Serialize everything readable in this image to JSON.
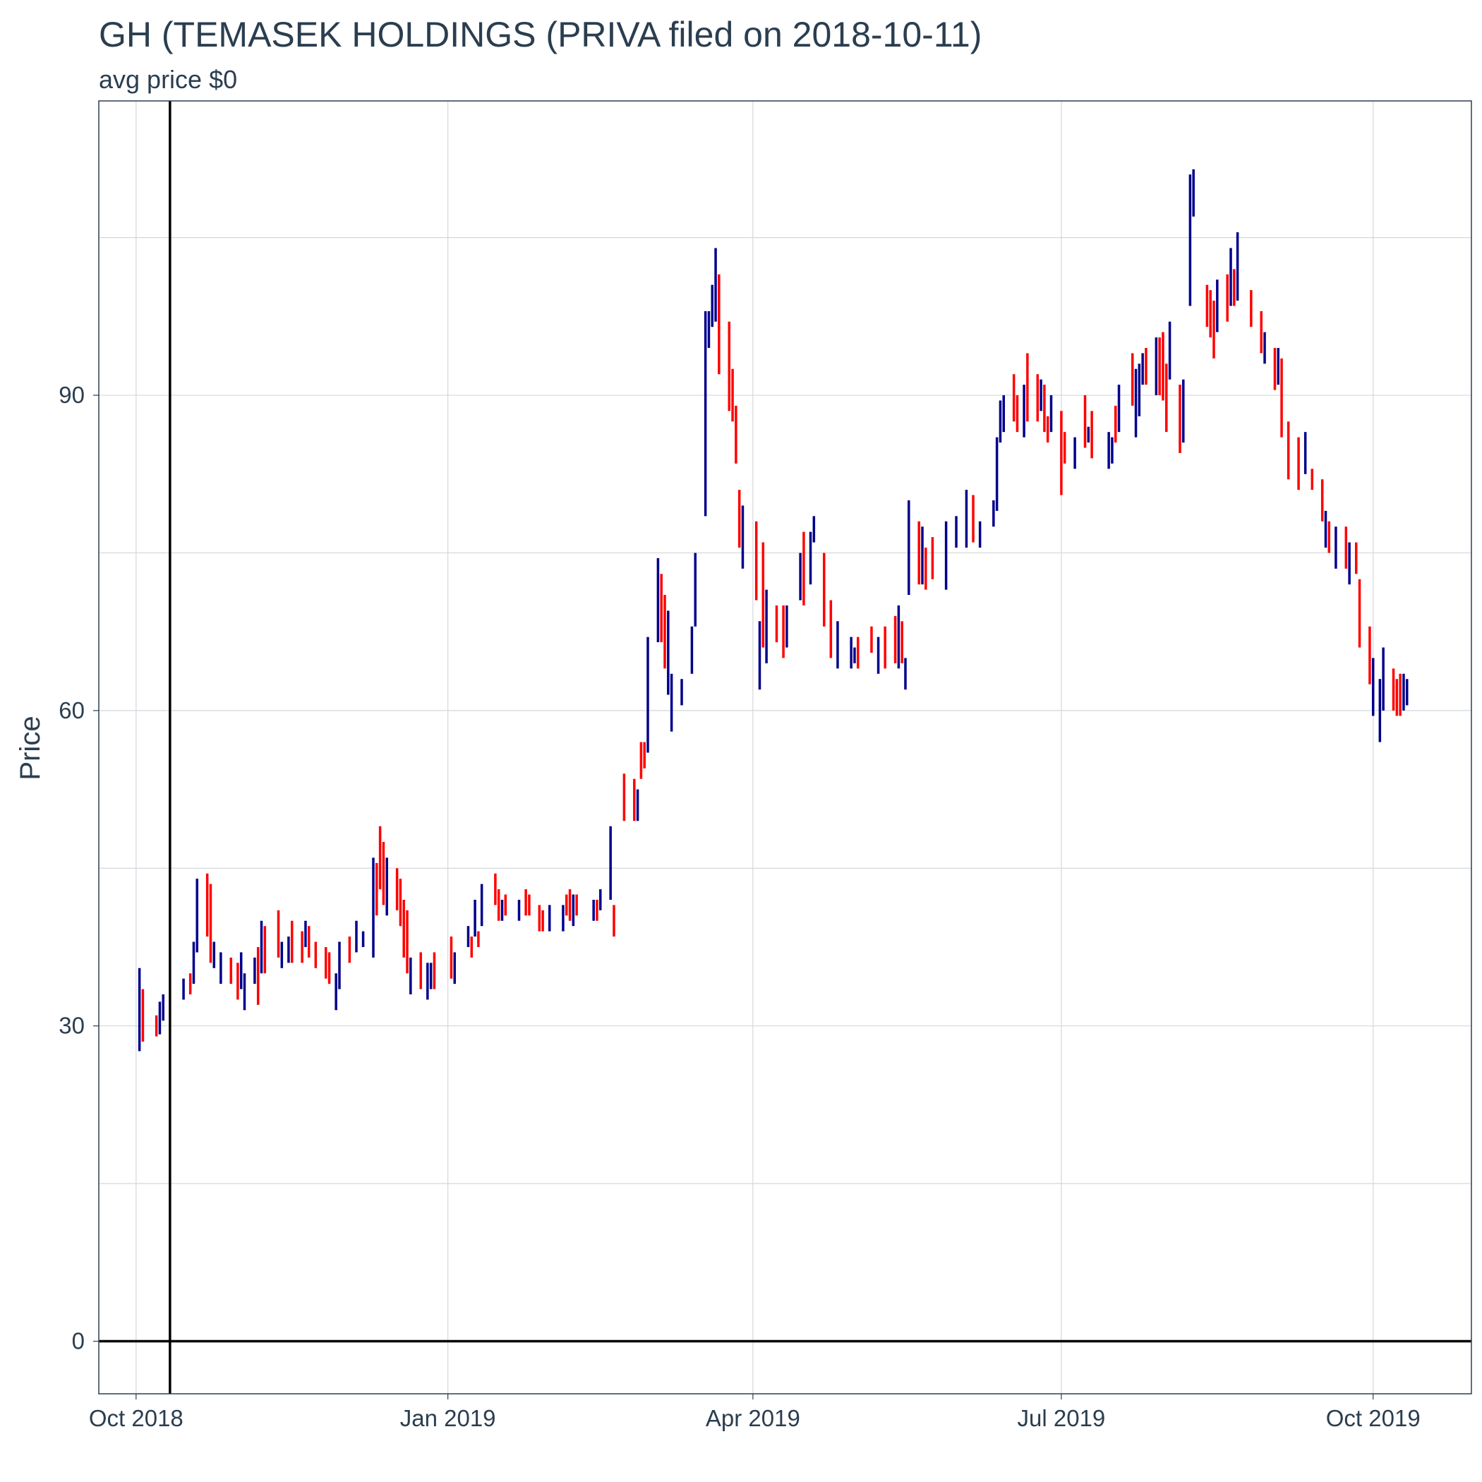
{
  "chart_data": {
    "type": "ohlc",
    "title": "GH (TEMASEK HOLDINGS (PRIVA filed on 2018-10-11)",
    "subtitle": "avg price $0",
    "xlabel": "",
    "ylabel": "Price",
    "ylim": [
      -5,
      118
    ],
    "y_ticks": [
      0,
      30,
      60,
      90
    ],
    "x_range": [
      "2018-09-20",
      "2019-10-30"
    ],
    "x_ticks": [
      {
        "date": "2018-10-01",
        "label": "Oct 2018"
      },
      {
        "date": "2019-01-01",
        "label": "Jan 2019"
      },
      {
        "date": "2019-04-01",
        "label": "Apr 2019"
      },
      {
        "date": "2019-07-01",
        "label": "Jul 2019"
      },
      {
        "date": "2019-10-01",
        "label": "Oct 2019"
      }
    ],
    "vertical_line_date": "2018-10-11",
    "horizontal_line_value": 0,
    "grid": true,
    "colors": {
      "up": "#00008b",
      "down": "#ff0000",
      "grid": "#d3d7db",
      "frame": "#2b3e50",
      "text": "#2b3e50"
    },
    "series": [
      {
        "name": "up",
        "points": [
          [
            "2018-10-02",
            27.6,
            35.5
          ],
          [
            "2018-10-08",
            29.2,
            32.3
          ],
          [
            "2018-10-09",
            30.5,
            33.0
          ],
          [
            "2018-10-15",
            32.5,
            34.5
          ],
          [
            "2018-10-18",
            34.0,
            38.0
          ],
          [
            "2018-10-19",
            37.0,
            44.0
          ],
          [
            "2018-10-24",
            35.5,
            38.0
          ],
          [
            "2018-10-26",
            34.0,
            37.0
          ],
          [
            "2018-11-01",
            33.5,
            37.0
          ],
          [
            "2018-11-02",
            31.5,
            35.0
          ],
          [
            "2018-11-05",
            34.0,
            36.5
          ],
          [
            "2018-11-07",
            35.0,
            40.0
          ],
          [
            "2018-11-13",
            35.5,
            38.0
          ],
          [
            "2018-11-15",
            36.0,
            38.5
          ],
          [
            "2018-11-20",
            37.5,
            40.0
          ],
          [
            "2018-11-29",
            31.5,
            35.0
          ],
          [
            "2018-11-30",
            33.5,
            38.0
          ],
          [
            "2018-12-05",
            37.0,
            40.0
          ],
          [
            "2018-12-07",
            37.5,
            39.0
          ],
          [
            "2018-12-10",
            36.5,
            46.0
          ],
          [
            "2018-12-14",
            40.5,
            46.0
          ],
          [
            "2018-12-21",
            33.0,
            36.5
          ],
          [
            "2018-12-26",
            32.5,
            36.0
          ],
          [
            "2018-12-27",
            33.5,
            36.0
          ],
          [
            "2019-01-03",
            34.0,
            37.0
          ],
          [
            "2019-01-07",
            37.5,
            39.5
          ],
          [
            "2019-01-09",
            38.5,
            42.0
          ],
          [
            "2019-01-11",
            39.5,
            43.5
          ],
          [
            "2019-01-17",
            40.0,
            42.0
          ],
          [
            "2019-01-22",
            40.0,
            42.0
          ],
          [
            "2019-01-31",
            39.0,
            41.5
          ],
          [
            "2019-02-04",
            39.0,
            41.5
          ],
          [
            "2019-02-07",
            39.5,
            42.5
          ],
          [
            "2019-02-13",
            40.0,
            42.0
          ],
          [
            "2019-02-15",
            41.0,
            43.0
          ],
          [
            "2019-02-18",
            42.0,
            49.0
          ],
          [
            "2019-02-26",
            49.5,
            52.5
          ],
          [
            "2019-03-01",
            56.0,
            67.0
          ],
          [
            "2019-03-04",
            66.5,
            74.5
          ],
          [
            "2019-03-07",
            61.5,
            69.5
          ],
          [
            "2019-03-08",
            58.0,
            63.5
          ],
          [
            "2019-03-11",
            60.5,
            63.0
          ],
          [
            "2019-03-14",
            63.5,
            68.0
          ],
          [
            "2019-03-15",
            68.0,
            75.0
          ],
          [
            "2019-03-18",
            78.5,
            98.0
          ],
          [
            "2019-03-19",
            94.5,
            98.0
          ],
          [
            "2019-03-20",
            96.5,
            100.5
          ],
          [
            "2019-03-21",
            97.0,
            104.0
          ],
          [
            "2019-03-29",
            73.5,
            79.5
          ],
          [
            "2019-04-03",
            62.0,
            68.5
          ],
          [
            "2019-04-05",
            64.5,
            71.5
          ],
          [
            "2019-04-11",
            66.0,
            70.0
          ],
          [
            "2019-04-15",
            70.5,
            75.0
          ],
          [
            "2019-04-18",
            72.0,
            77.0
          ],
          [
            "2019-04-19",
            76.0,
            78.5
          ],
          [
            "2019-04-26",
            64.0,
            68.5
          ],
          [
            "2019-04-30",
            64.0,
            67.0
          ],
          [
            "2019-05-01",
            64.5,
            66.0
          ],
          [
            "2019-05-08",
            63.5,
            67.0
          ],
          [
            "2019-05-14",
            64.0,
            70.0
          ],
          [
            "2019-05-16",
            62.0,
            65.0
          ],
          [
            "2019-05-17",
            71.0,
            80.0
          ],
          [
            "2019-05-21",
            72.0,
            77.5
          ],
          [
            "2019-05-28",
            71.5,
            78.0
          ],
          [
            "2019-05-31",
            75.5,
            78.5
          ],
          [
            "2019-06-03",
            75.5,
            81.0
          ],
          [
            "2019-06-07",
            75.5,
            78.0
          ],
          [
            "2019-06-11",
            77.5,
            80.0
          ],
          [
            "2019-06-12",
            79.0,
            86.0
          ],
          [
            "2019-06-13",
            85.5,
            89.5
          ],
          [
            "2019-06-14",
            86.5,
            90.0
          ],
          [
            "2019-06-20",
            86.0,
            91.0
          ],
          [
            "2019-06-25",
            88.5,
            91.5
          ],
          [
            "2019-06-28",
            86.5,
            90.0
          ],
          [
            "2019-07-05",
            83.0,
            86.0
          ],
          [
            "2019-07-09",
            85.5,
            87.0
          ],
          [
            "2019-07-15",
            83.0,
            86.5
          ],
          [
            "2019-07-16",
            83.5,
            86.0
          ],
          [
            "2019-07-18",
            86.5,
            91.0
          ],
          [
            "2019-07-23",
            86.0,
            92.5
          ],
          [
            "2019-07-24",
            88.0,
            93.0
          ],
          [
            "2019-07-25",
            91.0,
            94.0
          ],
          [
            "2019-07-29",
            90.0,
            95.5
          ],
          [
            "2019-08-02",
            91.5,
            97.0
          ],
          [
            "2019-08-06",
            85.5,
            91.5
          ],
          [
            "2019-08-08",
            98.5,
            111.0
          ],
          [
            "2019-08-09",
            107.0,
            111.5
          ],
          [
            "2019-08-16",
            96.0,
            101.0
          ],
          [
            "2019-08-20",
            98.5,
            104.0
          ],
          [
            "2019-08-22",
            99.0,
            105.5
          ],
          [
            "2019-08-30",
            93.0,
            96.0
          ],
          [
            "2019-09-03",
            91.0,
            94.5
          ],
          [
            "2019-09-11",
            82.5,
            86.5
          ],
          [
            "2019-09-17",
            75.5,
            79.0
          ],
          [
            "2019-09-20",
            73.5,
            77.5
          ],
          [
            "2019-09-24",
            72.0,
            76.0
          ],
          [
            "2019-10-01",
            59.5,
            65.0
          ],
          [
            "2019-10-03",
            57.0,
            63.0
          ],
          [
            "2019-10-04",
            60.0,
            66.0
          ],
          [
            "2019-10-10",
            60.0,
            63.5
          ],
          [
            "2019-10-11",
            60.5,
            63.0
          ]
        ]
      },
      {
        "name": "down",
        "points": [
          [
            "2018-10-03",
            28.5,
            33.5
          ],
          [
            "2018-10-07",
            29.0,
            31.0
          ],
          [
            "2018-10-17",
            33.0,
            35.0
          ],
          [
            "2018-10-22",
            38.5,
            44.5
          ],
          [
            "2018-10-23",
            36.0,
            43.5
          ],
          [
            "2018-10-29",
            34.0,
            36.5
          ],
          [
            "2018-10-31",
            32.5,
            36.0
          ],
          [
            "2018-11-06",
            32.0,
            37.5
          ],
          [
            "2018-11-08",
            35.0,
            39.5
          ],
          [
            "2018-11-12",
            36.5,
            41.0
          ],
          [
            "2018-11-16",
            36.0,
            40.0
          ],
          [
            "2018-11-19",
            36.0,
            39.0
          ],
          [
            "2018-11-21",
            36.5,
            39.5
          ],
          [
            "2018-11-23",
            35.5,
            38.0
          ],
          [
            "2018-11-26",
            34.5,
            37.5
          ],
          [
            "2018-11-27",
            34.0,
            37.0
          ],
          [
            "2018-12-03",
            36.0,
            38.5
          ],
          [
            "2018-12-11",
            40.5,
            45.5
          ],
          [
            "2018-12-12",
            43.0,
            49.0
          ],
          [
            "2018-12-13",
            41.5,
            47.5
          ],
          [
            "2018-12-17",
            41.0,
            45.0
          ],
          [
            "2018-12-18",
            39.5,
            44.0
          ],
          [
            "2018-12-19",
            36.5,
            42.0
          ],
          [
            "2018-12-20",
            35.0,
            41.0
          ],
          [
            "2018-12-24",
            33.5,
            37.0
          ],
          [
            "2018-12-28",
            33.5,
            37.0
          ],
          [
            "2019-01-02",
            34.5,
            38.5
          ],
          [
            "2019-01-08",
            36.5,
            38.5
          ],
          [
            "2019-01-10",
            37.5,
            39.0
          ],
          [
            "2019-01-15",
            41.5,
            44.5
          ],
          [
            "2019-01-16",
            40.0,
            43.0
          ],
          [
            "2019-01-18",
            40.5,
            42.5
          ],
          [
            "2019-01-24",
            40.5,
            43.0
          ],
          [
            "2019-01-25",
            40.5,
            42.5
          ],
          [
            "2019-01-28",
            39.0,
            41.5
          ],
          [
            "2019-01-29",
            39.0,
            41.0
          ],
          [
            "2019-02-05",
            40.5,
            42.5
          ],
          [
            "2019-02-06",
            40.0,
            43.0
          ],
          [
            "2019-02-08",
            40.5,
            42.5
          ],
          [
            "2019-02-14",
            40.0,
            42.0
          ],
          [
            "2019-02-19",
            38.5,
            41.5
          ],
          [
            "2019-02-22",
            49.5,
            54.0
          ],
          [
            "2019-02-25",
            49.5,
            53.5
          ],
          [
            "2019-02-27",
            53.5,
            57.0
          ],
          [
            "2019-02-28",
            54.5,
            57.0
          ],
          [
            "2019-03-05",
            66.5,
            73.0
          ],
          [
            "2019-03-06",
            64.0,
            71.0
          ],
          [
            "2019-03-22",
            92.0,
            101.5
          ],
          [
            "2019-03-25",
            88.5,
            97.0
          ],
          [
            "2019-03-26",
            87.5,
            92.5
          ],
          [
            "2019-03-27",
            83.5,
            89.0
          ],
          [
            "2019-03-28",
            75.5,
            81.0
          ],
          [
            "2019-04-02",
            70.5,
            78.0
          ],
          [
            "2019-04-04",
            66.0,
            76.0
          ],
          [
            "2019-04-08",
            66.5,
            70.0
          ],
          [
            "2019-04-10",
            65.0,
            70.0
          ],
          [
            "2019-04-16",
            70.0,
            77.0
          ],
          [
            "2019-04-22",
            68.0,
            75.0
          ],
          [
            "2019-04-24",
            65.0,
            70.5
          ],
          [
            "2019-05-02",
            64.0,
            67.0
          ],
          [
            "2019-05-06",
            65.5,
            68.0
          ],
          [
            "2019-05-10",
            64.0,
            68.0
          ],
          [
            "2019-05-13",
            64.5,
            69.0
          ],
          [
            "2019-05-15",
            64.5,
            68.5
          ],
          [
            "2019-05-20",
            72.0,
            78.0
          ],
          [
            "2019-05-22",
            71.5,
            75.5
          ],
          [
            "2019-05-24",
            72.5,
            76.5
          ],
          [
            "2019-06-05",
            76.0,
            80.5
          ],
          [
            "2019-06-17",
            87.5,
            92.0
          ],
          [
            "2019-06-18",
            86.5,
            90.0
          ],
          [
            "2019-06-21",
            87.5,
            94.0
          ],
          [
            "2019-06-24",
            87.5,
            92.0
          ],
          [
            "2019-06-26",
            86.5,
            91.0
          ],
          [
            "2019-06-27",
            85.5,
            88.0
          ],
          [
            "2019-07-01",
            80.5,
            88.5
          ],
          [
            "2019-07-02",
            83.5,
            86.5
          ],
          [
            "2019-07-08",
            85.0,
            90.0
          ],
          [
            "2019-07-10",
            84.0,
            88.5
          ],
          [
            "2019-07-17",
            85.5,
            89.0
          ],
          [
            "2019-07-22",
            89.0,
            94.0
          ],
          [
            "2019-07-26",
            91.0,
            94.5
          ],
          [
            "2019-07-30",
            90.0,
            95.5
          ],
          [
            "2019-07-31",
            89.5,
            96.0
          ],
          [
            "2019-08-01",
            86.5,
            93.0
          ],
          [
            "2019-08-05",
            84.5,
            91.0
          ],
          [
            "2019-08-13",
            96.5,
            100.5
          ],
          [
            "2019-08-14",
            95.5,
            100.0
          ],
          [
            "2019-08-15",
            93.5,
            99.0
          ],
          [
            "2019-08-19",
            97.0,
            101.5
          ],
          [
            "2019-08-21",
            98.5,
            102.0
          ],
          [
            "2019-08-26",
            96.5,
            100.0
          ],
          [
            "2019-08-29",
            94.0,
            98.0
          ],
          [
            "2019-09-02",
            90.5,
            94.5
          ],
          [
            "2019-09-04",
            86.0,
            93.5
          ],
          [
            "2019-09-06",
            82.0,
            87.5
          ],
          [
            "2019-09-09",
            81.0,
            86.0
          ],
          [
            "2019-09-13",
            81.0,
            83.0
          ],
          [
            "2019-09-16",
            78.0,
            82.0
          ],
          [
            "2019-09-18",
            75.0,
            78.0
          ],
          [
            "2019-09-23",
            73.5,
            77.5
          ],
          [
            "2019-09-26",
            73.0,
            76.0
          ],
          [
            "2019-09-27",
            66.0,
            72.5
          ],
          [
            "2019-09-30",
            62.5,
            68.0
          ],
          [
            "2019-10-07",
            60.0,
            64.0
          ],
          [
            "2019-10-08",
            59.5,
            63.0
          ],
          [
            "2019-10-09",
            59.5,
            63.5
          ]
        ]
      }
    ]
  }
}
